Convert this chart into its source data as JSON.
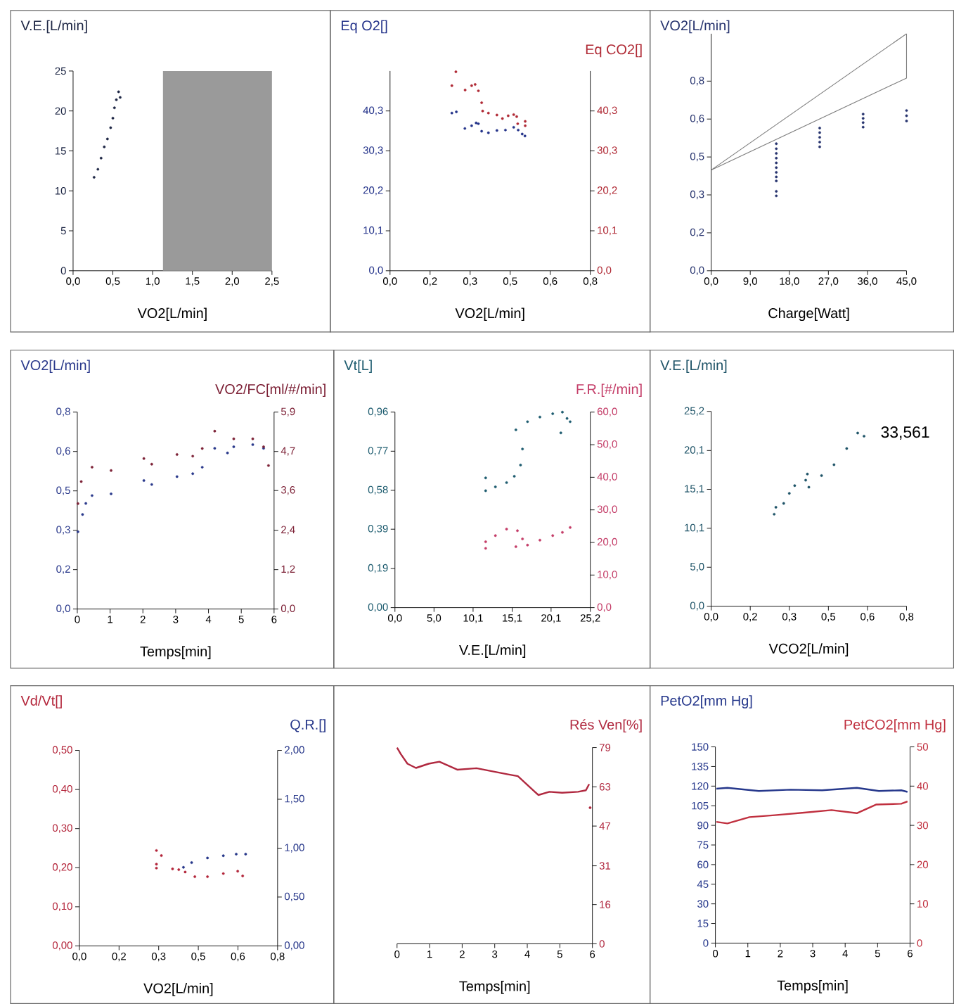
{
  "chart_data": [
    {
      "type": "scatter",
      "ylabel": "V.E.[L/min]",
      "xlabel": "VO2[L/min]",
      "xlim": [
        0,
        2.5
      ],
      "xticks": [
        {
          "value": 0,
          "label": "0,0"
        },
        {
          "value": 0.5,
          "label": "0,5"
        },
        {
          "value": 1,
          "label": "1,0"
        },
        {
          "value": 1.5,
          "label": "1,5"
        },
        {
          "value": 2,
          "label": "2,0"
        },
        {
          "value": 2.5,
          "label": "2,5"
        }
      ],
      "ylim": [
        0,
        25
      ],
      "yticks": [
        0,
        5,
        10,
        15,
        20,
        25
      ],
      "marker": "circle",
      "bands": [
        {
          "axis": "x",
          "from": 1.13,
          "to": 2.5,
          "color": "#9a9a9a"
        }
      ],
      "series": [
        {
          "color": "#1e2745",
          "x": [
            0.264,
            0.312,
            0.352,
            0.392,
            0.432,
            0.472,
            0.5,
            0.52,
            0.544,
            0.572,
            0.592
          ],
          "values": [
            11.7,
            12.7,
            14.1,
            15.5,
            16.5,
            17.9,
            19.1,
            20.4,
            21.4,
            22.4,
            21.7
          ]
        }
      ]
    },
    {
      "type": "scatter",
      "ylabel": "Eq O2[]",
      "y2label": "Eq CO2[]",
      "xlabel": "VO2[L/min]",
      "xlim": [
        0,
        0.8
      ],
      "xticks": [
        {
          "value": 0,
          "label": "0,0"
        },
        {
          "value": 0.16,
          "label": "0,2"
        },
        {
          "value": 0.32,
          "label": "0,3"
        },
        {
          "value": 0.48,
          "label": "0,5"
        },
        {
          "value": 0.64,
          "label": "0,6"
        },
        {
          "value": 0.8,
          "label": "0,8"
        }
      ],
      "ylim": [
        0,
        50.4
      ],
      "yticks": [
        {
          "value": 0,
          "label": "0,0"
        },
        {
          "value": 10.08,
          "label": "10,1"
        },
        {
          "value": 20.16,
          "label": "20,2"
        },
        {
          "value": 30.26,
          "label": "30,3"
        },
        {
          "value": 40.32,
          "label": "40,3"
        }
      ],
      "y2lim": [
        0,
        50.4
      ],
      "y2ticks": [
        {
          "value": 0,
          "label": "0,0"
        },
        {
          "value": 10.08,
          "label": "10,1"
        },
        {
          "value": 20.16,
          "label": "20,2"
        },
        {
          "value": 30.26,
          "label": "30,3"
        },
        {
          "value": 40.32,
          "label": "40,3"
        }
      ],
      "marker": "circle",
      "series": [
        {
          "color": "#24338a",
          "x": [
            0.247,
            0.265,
            0.299,
            0.326,
            0.344,
            0.353,
            0.366,
            0.393,
            0.427,
            0.461,
            0.494,
            0.512,
            0.528,
            0.539
          ],
          "values": [
            39.8,
            40.1,
            35.9,
            36.6,
            37.3,
            37.1,
            35.2,
            34.8,
            35.4,
            35.5,
            36.2,
            35.5,
            34.5,
            34.0
          ]
        },
        {
          "color": "#b02a35",
          "axis": "y2",
          "x": [
            0.247,
            0.263,
            0.3,
            0.326,
            0.34,
            0.353,
            0.366,
            0.37,
            0.393,
            0.427,
            0.449,
            0.472,
            0.494,
            0.506,
            0.51,
            0.54,
            0.54
          ],
          "values": [
            46.7,
            50.2,
            45.6,
            46.7,
            47.0,
            45.4,
            42.4,
            40.3,
            39.8,
            39.3,
            38.4,
            39.1,
            39.4,
            38.9,
            37.1,
            37.7,
            36.6
          ]
        }
      ]
    },
    {
      "type": "scatter",
      "ylabel": "VO2[L/min]",
      "xlabel": "Charge[Watt]",
      "xlim": [
        0,
        45
      ],
      "xticks": [
        {
          "value": 0,
          "label": "0,0"
        },
        {
          "value": 9,
          "label": "9,0"
        },
        {
          "value": 18,
          "label": "18,0"
        },
        {
          "value": 27,
          "label": "27,0"
        },
        {
          "value": 36,
          "label": "36,0"
        },
        {
          "value": 45,
          "label": "45,0"
        }
      ],
      "ylim": [
        0,
        1.0
      ],
      "yticks": [
        {
          "value": 0,
          "label": "0,0"
        },
        {
          "value": 0.16,
          "label": "0,2"
        },
        {
          "value": 0.32,
          "label": "0,3"
        },
        {
          "value": 0.48,
          "label": "0,5"
        },
        {
          "value": 0.64,
          "label": "0,6"
        },
        {
          "value": 0.8,
          "label": "0,8"
        }
      ],
      "series": [
        {
          "type": "line",
          "color": "#7f7f7f",
          "x": [
            0,
            45
          ],
          "values": [
            0.425,
            1.0
          ]
        },
        {
          "type": "line",
          "color": "#7f7f7f",
          "x": [
            0,
            45,
            45
          ],
          "values": [
            0.425,
            0.813,
            1.0
          ]
        },
        {
          "marker": "circle",
          "color": "#26336e",
          "x": [
            15,
            15,
            15,
            15,
            15,
            15,
            15,
            15,
            15,
            15,
            15,
            25,
            25,
            25,
            25,
            25,
            35,
            35,
            35,
            35,
            45,
            45,
            45
          ],
          "values": [
            0.316,
            0.335,
            0.379,
            0.396,
            0.415,
            0.435,
            0.455,
            0.475,
            0.495,
            0.515,
            0.536,
            0.523,
            0.543,
            0.563,
            0.583,
            0.602,
            0.606,
            0.625,
            0.643,
            0.661,
            0.632,
            0.654,
            0.676
          ]
        }
      ]
    },
    {
      "type": "scatter",
      "ylabel": "VO2[L/min]",
      "y2label": "VO2/FC[ml/#/min]",
      "xlabel": "Temps[min]",
      "xlim": [
        0,
        6
      ],
      "xticks": [
        0,
        1,
        2,
        3,
        4,
        5,
        6
      ],
      "ylim": [
        0,
        0.8
      ],
      "yticks": [
        {
          "value": 0,
          "label": "0,0"
        },
        {
          "value": 0.16,
          "label": "0,2"
        },
        {
          "value": 0.32,
          "label": "0,3"
        },
        {
          "value": 0.48,
          "label": "0,5"
        },
        {
          "value": 0.64,
          "label": "0,6"
        },
        {
          "value": 0.8,
          "label": "0,8"
        }
      ],
      "y2lim": [
        0,
        5.9
      ],
      "y2ticks": [
        {
          "value": 0,
          "label": "0,0"
        },
        {
          "value": 1.18,
          "label": "1,2"
        },
        {
          "value": 2.36,
          "label": "2,4"
        },
        {
          "value": 3.55,
          "label": "3,6"
        },
        {
          "value": 4.72,
          "label": "4,7"
        },
        {
          "value": 5.9,
          "label": "5,9"
        }
      ],
      "marker": "circle",
      "series": [
        {
          "color": "#2b3a8c",
          "x": [
            0.02,
            0.16,
            0.26,
            0.45,
            1.03,
            2.03,
            2.27,
            3.04,
            3.52,
            3.81,
            4.19,
            4.58,
            4.77,
            5.35,
            5.68
          ],
          "values": [
            0.314,
            0.384,
            0.429,
            0.461,
            0.468,
            0.522,
            0.506,
            0.538,
            0.55,
            0.576,
            0.653,
            0.634,
            0.659,
            0.668,
            0.653
          ]
        },
        {
          "color": "#7e2338",
          "axis": "y2",
          "x": [
            0.02,
            0.12,
            0.45,
            1.03,
            2.03,
            2.27,
            3.04,
            3.52,
            3.81,
            4.19,
            4.77,
            5.35,
            5.68,
            5.83
          ],
          "values": [
            3.16,
            3.82,
            4.25,
            4.15,
            4.51,
            4.34,
            4.63,
            4.58,
            4.81,
            5.33,
            5.1,
            5.1,
            4.86,
            4.3
          ]
        }
      ]
    },
    {
      "type": "scatter",
      "ylabel": "Vt[L]",
      "y2label": "F.R.[#/min]",
      "xlabel": "V.E.[L/min]",
      "xlim": [
        0,
        25.2
      ],
      "xticks": [
        {
          "value": 0,
          "label": "0,0"
        },
        {
          "value": 5.04,
          "label": "5,0"
        },
        {
          "value": 10.08,
          "label": "10,1"
        },
        {
          "value": 15.12,
          "label": "15,1"
        },
        {
          "value": 20.14,
          "label": "20,1"
        },
        {
          "value": 25.2,
          "label": "25,2"
        }
      ],
      "ylim": [
        0,
        0.96
      ],
      "yticks": [
        {
          "value": 0,
          "label": "0,00"
        },
        {
          "value": 0.192,
          "label": "0,19"
        },
        {
          "value": 0.385,
          "label": "0,39"
        },
        {
          "value": 0.576,
          "label": "0,58"
        },
        {
          "value": 0.768,
          "label": "0,77"
        },
        {
          "value": 0.96,
          "label": "0,96"
        }
      ],
      "y2lim": [
        0,
        60
      ],
      "y2ticks": [
        {
          "value": 0,
          "label": "0,0"
        },
        {
          "value": 10,
          "label": "10,0"
        },
        {
          "value": 20,
          "label": "20,0"
        },
        {
          "value": 30,
          "label": "30,0"
        },
        {
          "value": 40,
          "label": "40,0"
        },
        {
          "value": 50,
          "label": "50,0"
        },
        {
          "value": 60,
          "label": "60,0"
        }
      ],
      "marker": "circle",
      "series": [
        {
          "color": "#1f5d70",
          "x": [
            11.7,
            11.7,
            12.96,
            14.4,
            15.4,
            16.2,
            16.45,
            15.6,
            17.1,
            18.7,
            20.35,
            21.6,
            21.4,
            22.2,
            22.6
          ],
          "values": [
            0.574,
            0.637,
            0.593,
            0.614,
            0.645,
            0.7,
            0.779,
            0.873,
            0.913,
            0.936,
            0.952,
            0.96,
            0.858,
            0.929,
            0.913
          ]
        },
        {
          "color": "#c43d68",
          "axis": "y2",
          "x": [
            11.7,
            11.7,
            12.96,
            14.4,
            15.8,
            16.45,
            15.6,
            17.1,
            18.7,
            20.35,
            21.6,
            22.6
          ],
          "values": [
            18.2,
            20.2,
            22.1,
            24.1,
            23.6,
            21.1,
            18.7,
            19.2,
            20.7,
            22.1,
            23.1,
            24.6
          ]
        }
      ]
    },
    {
      "type": "scatter",
      "ylabel": "V.E.[L/min]",
      "xlabel": "VCO2[L/min]",
      "xlim": [
        0,
        0.8
      ],
      "xticks": [
        {
          "value": 0,
          "label": "0,0"
        },
        {
          "value": 0.16,
          "label": "0,2"
        },
        {
          "value": 0.32,
          "label": "0,3"
        },
        {
          "value": 0.48,
          "label": "0,5"
        },
        {
          "value": 0.64,
          "label": "0,6"
        },
        {
          "value": 0.8,
          "label": "0,8"
        }
      ],
      "ylim": [
        0,
        25.2
      ],
      "yticks": [
        {
          "value": 0,
          "label": "0,0"
        },
        {
          "value": 5.04,
          "label": "5,0"
        },
        {
          "value": 10.08,
          "label": "10,1"
        },
        {
          "value": 15.12,
          "label": "15,1"
        },
        {
          "value": 20.14,
          "label": "20,1"
        },
        {
          "value": 25.2,
          "label": "25,2"
        }
      ],
      "marker": "circle",
      "annotations": [
        {
          "text": "33,561",
          "x": 0.626,
          "y": 22.4
        }
      ],
      "series": [
        {
          "color": "#1f5468",
          "x": [
            0.258,
            0.265,
            0.297,
            0.32,
            0.342,
            0.387,
            0.394,
            0.4,
            0.452,
            0.503,
            0.555,
            0.6,
            0.626
          ],
          "values": [
            11.9,
            12.8,
            13.3,
            14.6,
            15.6,
            16.3,
            17.1,
            15.4,
            16.9,
            18.3,
            20.4,
            22.4,
            22.0
          ]
        }
      ]
    },
    {
      "type": "scatter",
      "ylabel": "Vd/Vt[]",
      "y2label": "Q.R.[]",
      "xlabel": "VO2[L/min]",
      "xlim": [
        0,
        0.8
      ],
      "xticks": [
        {
          "value": 0,
          "label": "0,0"
        },
        {
          "value": 0.16,
          "label": "0,2"
        },
        {
          "value": 0.32,
          "label": "0,3"
        },
        {
          "value": 0.48,
          "label": "0,5"
        },
        {
          "value": 0.64,
          "label": "0,6"
        },
        {
          "value": 0.8,
          "label": "0,8"
        }
      ],
      "ylim": [
        0,
        0.5
      ],
      "yticks": [
        {
          "value": 0,
          "label": "0,00"
        },
        {
          "value": 0.1,
          "label": "0,10"
        },
        {
          "value": 0.2,
          "label": "0,20"
        },
        {
          "value": 0.3,
          "label": "0,30"
        },
        {
          "value": 0.4,
          "label": "0,40"
        },
        {
          "value": 0.5,
          "label": "0,50"
        }
      ],
      "y2lim": [
        0,
        2
      ],
      "y2ticks": [
        {
          "value": 0,
          "label": "0,00"
        },
        {
          "value": 0.5,
          "label": "0,50"
        },
        {
          "value": 1,
          "label": "1,00"
        },
        {
          "value": 1.5,
          "label": "1,50"
        },
        {
          "value": 2,
          "label": "2,00"
        }
      ],
      "marker": "circle",
      "series": [
        {
          "color": "#b3253a",
          "x": [
            0.311,
            0.331,
            0.311,
            0.311,
            0.376,
            0.401,
            0.427,
            0.466,
            0.517,
            0.581,
            0.639,
            0.659
          ],
          "values": [
            0.244,
            0.231,
            0.209,
            0.199,
            0.197,
            0.195,
            0.189,
            0.177,
            0.177,
            0.185,
            0.191,
            0.179
          ]
        },
        {
          "color": "#27378a",
          "axis": "y2",
          "x": [
            0.42,
            0.453,
            0.517,
            0.581,
            0.633,
            0.671
          ],
          "values": [
            0.804,
            0.852,
            0.9,
            0.923,
            0.939,
            0.939
          ]
        }
      ]
    },
    {
      "type": "line",
      "y2label": "Rés Ven[%]",
      "xlabel": "Temps[min]",
      "xlim": [
        0,
        6
      ],
      "xticks": [
        0,
        1,
        2,
        3,
        4,
        5,
        6
      ],
      "y2lim": [
        0,
        79
      ],
      "y2ticks": [
        {
          "value": 0,
          "label": "0"
        },
        {
          "value": 15.8,
          "label": "16"
        },
        {
          "value": 31.4,
          "label": "31"
        },
        {
          "value": 47.4,
          "label": "47"
        },
        {
          "value": 63.2,
          "label": "63"
        },
        {
          "value": 79,
          "label": "79"
        }
      ],
      "series": [
        {
          "color": "#b0283f",
          "axis": "y2",
          "x": [
            0,
            0.11,
            0.32,
            0.58,
            0.97,
            1.3,
            1.85,
            2.44,
            3.02,
            3.41,
            3.71,
            4.34,
            4.68,
            5.07,
            5.56,
            5.8,
            5.9
          ],
          "values": [
            79,
            76.5,
            72.5,
            70.8,
            72.5,
            73.3,
            70.1,
            70.7,
            69.2,
            68.2,
            67.5,
            59.9,
            61.2,
            60.8,
            61.2,
            61.8,
            64.3
          ]
        },
        {
          "type": "scatter",
          "marker": "circle",
          "color": "#b0283f",
          "axis": "y2",
          "x": [
            5.93
          ],
          "values": [
            54.8
          ]
        }
      ]
    },
    {
      "type": "line",
      "ylabel": "PetO2[mm Hg]",
      "y2label": "PetCO2[mm Hg]",
      "xlabel": "Temps[min]",
      "xlim": [
        0,
        6
      ],
      "xticks": [
        0,
        1,
        2,
        3,
        4,
        5,
        6
      ],
      "ylim": [
        0,
        150
      ],
      "yticks": [
        0,
        15,
        30,
        45,
        60,
        75,
        90,
        105,
        120,
        135,
        150
      ],
      "y2lim": [
        0,
        50
      ],
      "y2ticks": [
        0,
        10,
        20,
        30,
        40,
        50
      ],
      "series": [
        {
          "color": "#26388c",
          "x": [
            0.03,
            0.37,
            1.34,
            2.32,
            3.29,
            4.36,
            5.04,
            5.73,
            5.92
          ],
          "values": [
            118.0,
            118.7,
            116.3,
            117.3,
            116.8,
            118.7,
            116.3,
            116.8,
            115.6
          ]
        },
        {
          "color": "#c0303f",
          "axis": "y2",
          "x": [
            0.03,
            0.37,
            1.05,
            1.83,
            2.8,
            3.58,
            4.36,
            4.95,
            5.73,
            5.92
          ],
          "values": [
            30.9,
            30.5,
            32.1,
            32.6,
            33.3,
            33.9,
            33.1,
            35.3,
            35.5,
            36.1
          ]
        }
      ]
    }
  ]
}
